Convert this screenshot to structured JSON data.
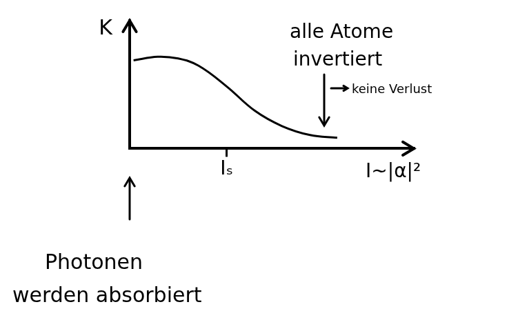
{
  "chart_data": {
    "type": "line",
    "x_label": "I~|α|²",
    "y_label": "K",
    "x": [
      0.04,
      0.29,
      0.5,
      0.71,
      1.0,
      1.29,
      1.57,
      1.86,
      2.14
    ],
    "values": [
      0.98,
      1.02,
      1.0,
      0.92,
      0.69,
      0.42,
      0.25,
      0.15,
      0.12
    ],
    "color": "#000000",
    "xlim": [
      0,
      2.93
    ],
    "ylim": [
      0,
      1.42
    ],
    "xticks": [
      {
        "value": 1,
        "label": "Iₛ"
      }
    ],
    "yticks": [],
    "tick_labels": "x",
    "grid": false,
    "annotations": [
      "alle Atome invertiert",
      "keine Verlust",
      "Photonen werden absorbiert"
    ]
  }
}
